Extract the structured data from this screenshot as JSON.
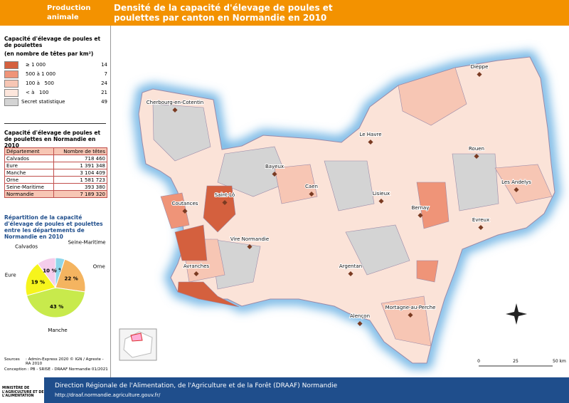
{
  "header": {
    "tag": "Production animale",
    "title": "Densité de la capacité d'élevage de poules et poulettes par canton en Normandie en 2010"
  },
  "legend": {
    "title": "Capacité d'élevage de poules et de poulettes",
    "subtitle": "(en nombre de têtes par km²)",
    "classes": [
      {
        "label": "≥ 1 000",
        "count": 14,
        "color": "#d4603e"
      },
      {
        "label": "500 à 1 000",
        "count": 7,
        "color": "#ef9478"
      },
      {
        "label": "100 à   500",
        "count": 24,
        "color": "#f7c6b4"
      },
      {
        "label": "< à   100",
        "count": 21,
        "color": "#fde6dc"
      },
      {
        "label": "Secret statistique",
        "count": 49,
        "color": "#d4d4d4"
      }
    ]
  },
  "table": {
    "title": "Capacité d'élevage de poules et de poulettes en Normandie en 2010",
    "headers": [
      "Département",
      "Nombre de têtes"
    ],
    "rows": [
      [
        "Calvados",
        "718 460"
      ],
      [
        "Eure",
        "1 391 348"
      ],
      [
        "Manche",
        "3 104 409"
      ],
      [
        "Orne",
        "1 581 723"
      ],
      [
        "Seine-Maritime",
        "393 380"
      ],
      [
        "Normandie",
        "7 189 320"
      ]
    ]
  },
  "pie": {
    "type": "pie",
    "title": "Répartition de la capacité d'élevage de poules et poulettes entre les départements de Normandie en 2010",
    "categories": [
      "Seine-Maritime",
      "Orne",
      "Manche",
      "Eure",
      "Calvados"
    ],
    "values": [
      5,
      22,
      43,
      19,
      10
    ],
    "value_labels": [
      "5 %",
      "22 %",
      "43 %",
      "19 %",
      "10 %"
    ],
    "colors": [
      "#8ed6ea",
      "#f4b460",
      "#c8ea4c",
      "#f6f41c",
      "#f5cdeb"
    ]
  },
  "map": {
    "cities": [
      "Dieppe",
      "Cherbourg-en-Cotentin",
      "Le Havre",
      "Rouen",
      "Bayeux",
      "Caen",
      "Saint-Lô",
      "Lisieux",
      "Les Andelys",
      "Coutances",
      "Bernay",
      "Evreux",
      "Vire Normandie",
      "Avranches",
      "Argentan",
      "Mortagne-au-Perche",
      "Alençon"
    ],
    "scale": [
      "0",
      "25",
      "50 km"
    ]
  },
  "sources": {
    "label": "Sources",
    "text": ": Admin-Express 2020 © IGN / Agreste - RA 2010",
    "conception": "Conception : PB - SRISE - DRAAF Normandie 01/2021"
  },
  "footer": {
    "ministry": "MINISTÈRE DE L'AGRICULTURE ET DE L'ALIMENTATION",
    "title": "Direction Régionale de l'Alimentation, de l'Agriculture et de la Forêt (DRAAF) Normandie",
    "url": "http://draaf.normandie.agriculture.gouv.fr/"
  }
}
